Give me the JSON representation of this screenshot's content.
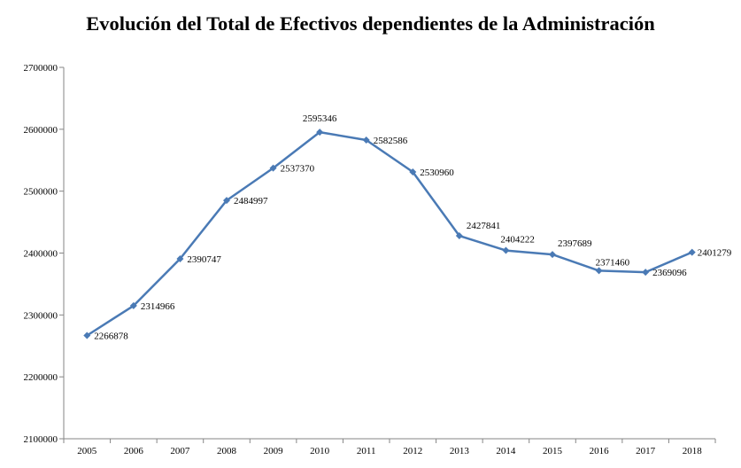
{
  "chart_data": {
    "type": "line",
    "title": "Evolución del Total de Efectivos dependientes de la Administración",
    "xlabel": "",
    "ylabel": "",
    "categories": [
      "2005",
      "2006",
      "2007",
      "2008",
      "2009",
      "2010",
      "2011",
      "2012",
      "2013",
      "2014",
      "2015",
      "2016",
      "2017",
      "2018"
    ],
    "series": [
      {
        "name": "Total de Efectivos",
        "values": [
          2266878,
          2314966,
          2390747,
          2484997,
          2537370,
          2595346,
          2582586,
          2530960,
          2427841,
          2404222,
          2397689,
          2371460,
          2369096,
          2401279
        ]
      }
    ],
    "data_labels": [
      "2266878",
      "2314966",
      "2390747",
      "2484997",
      "2537370",
      "2595346",
      "2582586",
      "2530960",
      "2427841",
      "2404222",
      "2397689",
      "2371460",
      "2369096",
      "2401279"
    ],
    "ylim": [
      2100000,
      2700000
    ],
    "yticks": [
      2100000,
      2200000,
      2300000,
      2400000,
      2500000,
      2600000,
      2700000
    ],
    "ytick_labels": [
      "2100000",
      "2200000",
      "2300000",
      "2400000",
      "2500000",
      "2600000",
      "2700000"
    ],
    "grid": false,
    "line_color": "#4a7ab5"
  }
}
